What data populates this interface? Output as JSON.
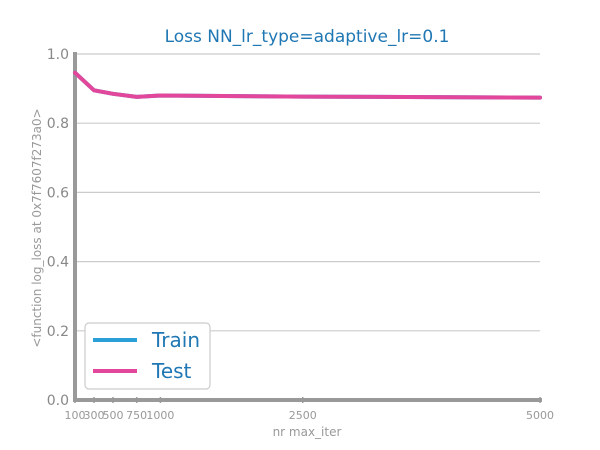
{
  "chart_data": {
    "type": "line",
    "title": "Loss NN_lr_type=adaptive_lr=0.1",
    "xlabel": "nr max_iter",
    "ylabel": "<function log_loss at 0x7f7607f273a0>",
    "xlim": [
      100,
      5000
    ],
    "ylim": [
      0.0,
      1.0
    ],
    "x_ticks": [
      100,
      300,
      500,
      750,
      1000,
      2500,
      5000
    ],
    "y_ticks": [
      "0.0",
      "0.2",
      "0.4",
      "0.6",
      "0.8",
      "1.0"
    ],
    "grid": "horizontal",
    "legend_position": "lower-left",
    "series": [
      {
        "name": "Train",
        "color": "#2b9fd8",
        "x": [
          100,
          300,
          500,
          750,
          1000,
          2500,
          5000
        ],
        "y": [
          0.946,
          0.895,
          0.885,
          0.876,
          0.88,
          0.877,
          0.874
        ]
      },
      {
        "name": "Test",
        "color": "#e2479b",
        "x": [
          100,
          300,
          500,
          750,
          1000,
          2500,
          5000
        ],
        "y": [
          0.946,
          0.895,
          0.885,
          0.876,
          0.88,
          0.877,
          0.874
        ]
      }
    ]
  }
}
